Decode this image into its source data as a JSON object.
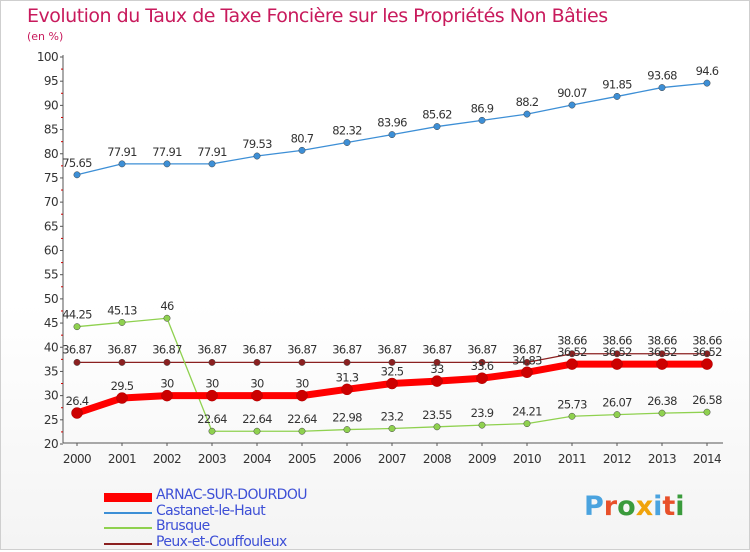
{
  "title": "Evolution du Taux de Taxe Foncière sur les Propriétés Non Bâties",
  "unit_label": "(en %)",
  "logo": {
    "text": "Proxiti",
    "colors": [
      "#4aa3df",
      "#e8502a",
      "#3a9b3c",
      "#f0a30a",
      "#4aa3df",
      "#e8502a",
      "#3a9b3c"
    ]
  },
  "chart_data": {
    "type": "line",
    "title": "Evolution du Taux de Taxe Foncière sur les Propriétés Non Bâties",
    "ylabel": "(en %)",
    "xlabel": "",
    "x": [
      "2000",
      "2001",
      "2002",
      "2003",
      "2004",
      "2005",
      "2006",
      "2007",
      "2008",
      "2009",
      "2010",
      "2011",
      "2012",
      "2013",
      "2014"
    ],
    "y_ticks": [
      "20",
      "25",
      "30",
      "35",
      "40",
      "45",
      "50",
      "55",
      "60",
      "65",
      "70",
      "75",
      "80",
      "85",
      "90",
      "95",
      "100"
    ],
    "ylim": [
      20,
      100
    ],
    "grid": false,
    "legend_position": "bottom-left",
    "series": [
      {
        "name": "ARNAC-SUR-DOURDOU",
        "color": "#ff0000",
        "values": [
          26.4,
          29.5,
          30,
          30,
          30,
          30,
          31.3,
          32.5,
          33,
          33.6,
          34.83,
          36.52,
          36.52,
          36.52,
          36.52
        ],
        "labels": [
          "26.4",
          "29.5",
          "30",
          "30",
          "30",
          "30",
          "31.3",
          "32.5",
          "33",
          "33.6",
          "34.83",
          "36.52",
          "36.52",
          "36.52",
          "36.52"
        ]
      },
      {
        "name": "Castanet-le-Haut",
        "color": "#3d8fd6",
        "values": [
          75.65,
          77.91,
          77.91,
          77.91,
          79.53,
          80.7,
          82.32,
          83.96,
          85.62,
          86.9,
          88.2,
          90.07,
          91.85,
          93.68,
          94.6
        ],
        "labels": [
          "75.65",
          "77.91",
          "77.91",
          "77.91",
          "79.53",
          "80.7",
          "82.32",
          "83.96",
          "85.62",
          "86.9",
          "88.2",
          "90.07",
          "91.85",
          "93.68",
          "94.6"
        ]
      },
      {
        "name": "Brusque",
        "color": "#8fd14f",
        "values": [
          44.25,
          45.13,
          46,
          22.64,
          22.64,
          22.64,
          22.98,
          23.2,
          23.55,
          23.9,
          24.21,
          25.73,
          26.07,
          26.38,
          26.58
        ],
        "labels": [
          "44.25",
          "45.13",
          "46",
          "22.64",
          "22.64",
          "22.64",
          "22.98",
          "23.2",
          "23.55",
          "23.9",
          "24.21",
          "25.73",
          "26.07",
          "26.38",
          "26.58"
        ]
      },
      {
        "name": "Peux-et-Couffouleux",
        "color": "#8b2020",
        "values": [
          36.87,
          36.87,
          36.87,
          36.87,
          36.87,
          36.87,
          36.87,
          36.87,
          36.87,
          36.87,
          36.87,
          38.66,
          38.66,
          38.66,
          38.66
        ],
        "labels": [
          "36.87",
          "36.87",
          "36.87",
          "36.87",
          "36.87",
          "36.87",
          "36.87",
          "36.87",
          "36.87",
          "36.87",
          "36.87",
          "38.66",
          "38.66",
          "38.66",
          "38.66"
        ]
      }
    ]
  }
}
